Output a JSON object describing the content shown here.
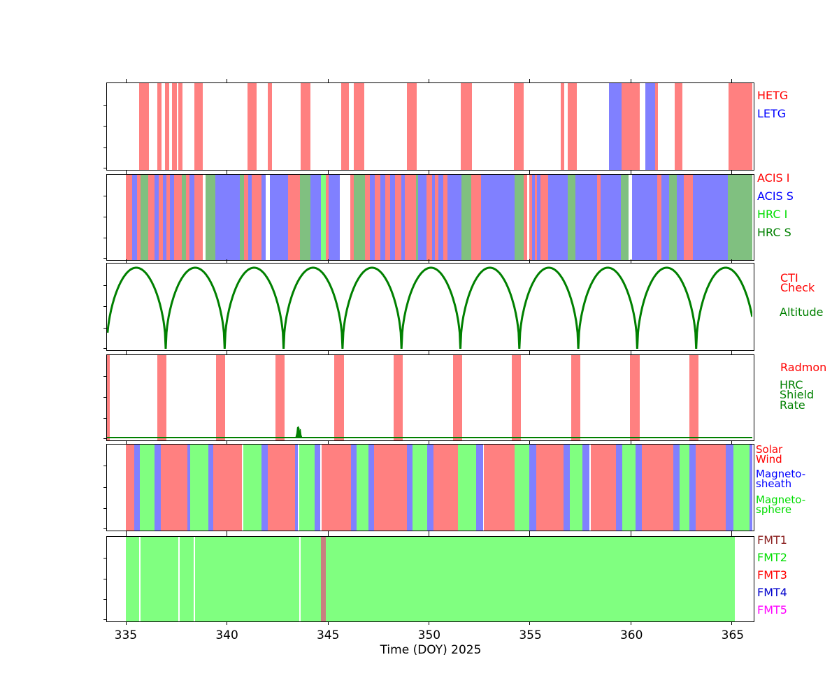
{
  "figure": {
    "background": "#ffffff",
    "description": "Chandra mission planning timeline, six stacked interval/line panels sharing one time axis"
  },
  "xaxis": {
    "label": "Time (DOY) 2025",
    "units": "Day of Year 2025",
    "major_ticks": [
      335,
      340,
      345,
      350,
      355,
      360,
      365
    ],
    "range": [
      334.07,
      366.04
    ],
    "grid": false
  },
  "legend_position": "right-of-panels",
  "legends": {
    "gratings": [
      {
        "label": "HETG",
        "color": "#ff0000"
      },
      {
        "label": "LETG",
        "color": "#0000ff"
      }
    ],
    "instruments": [
      {
        "label": "ACIS I",
        "color": "#ff0000"
      },
      {
        "label": "ACIS S",
        "color": "#0000ff"
      },
      {
        "label": "HRC I",
        "color": "#00dd00"
      },
      {
        "label": "HRC S",
        "color": "#008000"
      }
    ],
    "orbit": [
      {
        "label": "CTI\nCheck",
        "color": "#ff0000"
      },
      {
        "label": "Altitude",
        "color": "#008000"
      }
    ],
    "radiation": [
      {
        "label": "Radmon",
        "color": "#ff0000"
      },
      {
        "label": "HRC\nShield\nRate",
        "color": "#008000"
      }
    ],
    "solar_wind": [
      {
        "label": "Solar\nWind",
        "color": "#ff0000"
      },
      {
        "label": "Magneto-\nsheath",
        "color": "#0000ff"
      },
      {
        "label": "Magneto-\nsphere",
        "color": "#00dd00"
      }
    ],
    "telemetry": [
      {
        "label": "FMT1",
        "color": "#8b2020"
      },
      {
        "label": "FMT2",
        "color": "#00dd00"
      },
      {
        "label": "FMT3",
        "color": "#ff0000"
      },
      {
        "label": "FMT4",
        "color": "#0000cc"
      },
      {
        "label": "FMT5",
        "color": "#ff00ff"
      }
    ]
  },
  "chart_data": [
    {
      "id": "gratings",
      "type": "bar",
      "render": "intervals",
      "x_units": "DOY 2025",
      "series": [
        {
          "name": "HETG",
          "barColor": "#ff8080",
          "intervals": [
            [
              335.68,
              336.16
            ],
            [
              336.56,
              336.78
            ],
            [
              336.93,
              337.14
            ],
            [
              337.28,
              337.52
            ],
            [
              337.62,
              337.81
            ],
            [
              338.39,
              338.83
            ],
            [
              341.02,
              341.49
            ],
            [
              342.03,
              342.26
            ],
            [
              343.66,
              344.15
            ],
            [
              345.68,
              346.06
            ],
            [
              346.3,
              346.83
            ],
            [
              348.94,
              349.41
            ],
            [
              351.6,
              352.14
            ],
            [
              354.24,
              354.7
            ],
            [
              356.56,
              356.72
            ],
            [
              356.9,
              357.35
            ],
            [
              359.57,
              360.46
            ],
            [
              361.24,
              361.35
            ],
            [
              362.2,
              362.59
            ],
            [
              364.86,
              366.04
            ]
          ]
        },
        {
          "name": "LETG",
          "barColor": "#8080ff",
          "intervals": [
            [
              358.94,
              359.57
            ],
            [
              360.75,
              361.24
            ]
          ]
        }
      ]
    },
    {
      "id": "instruments",
      "type": "bar",
      "render": "segments",
      "x_units": "DOY 2025",
      "colorKeys": {
        "r": "#ff8080",
        "b": "#8080ff",
        "g": "#80ff80",
        "s": "#80c080"
      },
      "keyNames": {
        "r": "ACIS I",
        "b": "ACIS S",
        "g": "HRC I",
        "s": "HRC S"
      },
      "segments": [
        [
          335.02,
          335.31,
          "r"
        ],
        [
          335.31,
          335.56,
          "b"
        ],
        [
          335.56,
          335.74,
          "r"
        ],
        [
          335.74,
          336.11,
          "s"
        ],
        [
          336.11,
          336.43,
          "r"
        ],
        [
          336.43,
          336.65,
          "b"
        ],
        [
          336.65,
          336.83,
          "r"
        ],
        [
          336.83,
          337.01,
          "b"
        ],
        [
          337.01,
          337.2,
          "r"
        ],
        [
          337.2,
          337.41,
          "b"
        ],
        [
          337.41,
          337.78,
          "r"
        ],
        [
          337.78,
          337.97,
          "s"
        ],
        [
          337.97,
          338.16,
          "r"
        ],
        [
          338.16,
          338.39,
          "b"
        ],
        [
          338.39,
          338.81,
          "r"
        ],
        [
          338.96,
          339.44,
          "s"
        ],
        [
          339.44,
          340.65,
          "b"
        ],
        [
          340.65,
          340.85,
          "s"
        ],
        [
          340.85,
          341.08,
          "r"
        ],
        [
          341.08,
          341.25,
          "b"
        ],
        [
          341.25,
          341.72,
          "r"
        ],
        [
          341.72,
          341.95,
          "b"
        ],
        [
          342.15,
          343.05,
          "b"
        ],
        [
          343.05,
          343.62,
          "r"
        ],
        [
          343.62,
          344.16,
          "s"
        ],
        [
          344.16,
          344.66,
          "b"
        ],
        [
          344.66,
          344.91,
          "g"
        ],
        [
          344.91,
          345.05,
          "r"
        ],
        [
          345.05,
          345.6,
          "b"
        ],
        [
          346.12,
          346.31,
          "r"
        ],
        [
          346.31,
          346.86,
          "s"
        ],
        [
          346.86,
          347.09,
          "r"
        ],
        [
          347.09,
          347.34,
          "b"
        ],
        [
          347.34,
          347.61,
          "r"
        ],
        [
          347.61,
          347.84,
          "b"
        ],
        [
          347.84,
          348.1,
          "r"
        ],
        [
          348.1,
          348.35,
          "b"
        ],
        [
          348.35,
          348.64,
          "r"
        ],
        [
          348.64,
          348.81,
          "b"
        ],
        [
          348.81,
          349.38,
          "r"
        ],
        [
          349.38,
          349.5,
          "s"
        ],
        [
          349.5,
          349.9,
          "b"
        ],
        [
          349.9,
          350.19,
          "r"
        ],
        [
          350.19,
          350.33,
          "b"
        ],
        [
          350.33,
          350.48,
          "r"
        ],
        [
          350.48,
          350.74,
          "b"
        ],
        [
          350.74,
          350.94,
          "r"
        ],
        [
          350.94,
          351.62,
          "b"
        ],
        [
          351.62,
          352.11,
          "s"
        ],
        [
          352.11,
          352.6,
          "r"
        ],
        [
          352.6,
          354.26,
          "b"
        ],
        [
          354.26,
          354.72,
          "s"
        ],
        [
          354.72,
          354.87,
          "r"
        ],
        [
          354.98,
          355.12,
          "r"
        ],
        [
          355.12,
          355.26,
          "b"
        ],
        [
          355.26,
          355.38,
          "r"
        ],
        [
          355.38,
          355.54,
          "b"
        ],
        [
          355.54,
          355.92,
          "r"
        ],
        [
          355.92,
          356.9,
          "b"
        ],
        [
          356.9,
          357.27,
          "s"
        ],
        [
          357.27,
          358.35,
          "b"
        ],
        [
          358.35,
          358.52,
          "r"
        ],
        [
          358.52,
          359.54,
          "b"
        ],
        [
          359.54,
          359.92,
          "s"
        ],
        [
          360.09,
          361.32,
          "b"
        ],
        [
          361.32,
          361.55,
          "r"
        ],
        [
          361.55,
          361.92,
          "b"
        ],
        [
          361.92,
          362.29,
          "s"
        ],
        [
          362.29,
          362.65,
          "b"
        ],
        [
          362.65,
          363.1,
          "r"
        ],
        [
          363.1,
          364.82,
          "b"
        ],
        [
          364.82,
          366.04,
          "s"
        ]
      ]
    },
    {
      "id": "orbit",
      "type": "line",
      "render": "curve",
      "name": "Altitude",
      "color": "#008000",
      "line_width": 3,
      "perigee_start_doy": 334.06,
      "period_days": 2.92,
      "shape_exponent": 0.5,
      "note": "repeating altitude arches, minima (perigee) every 2.92 days starting DOY 334.06"
    },
    {
      "id": "radiation",
      "type": "bar",
      "render": "intervals",
      "series": [
        {
          "name": "Radmon",
          "barColor": "#ff8080",
          "intervals": [
            [
              334.07,
              334.2
            ],
            [
              336.55,
              337.0
            ],
            [
              339.48,
              339.94
            ],
            [
              342.41,
              342.86
            ],
            [
              345.34,
              345.8
            ],
            [
              348.27,
              348.73
            ],
            [
              351.2,
              351.66
            ],
            [
              354.13,
              354.59
            ],
            [
              357.06,
              357.52
            ],
            [
              359.99,
              360.45
            ],
            [
              362.92,
              363.38
            ]
          ]
        }
      ],
      "baseline": {
        "name": "HRC Shield Rate",
        "color": "#008000",
        "spike": [
          [
            343.42,
            0.0
          ],
          [
            343.47,
            0.05
          ],
          [
            343.5,
            0.12
          ],
          [
            343.55,
            0.13
          ],
          [
            343.59,
            0.11
          ],
          [
            343.62,
            0.05
          ],
          [
            343.65,
            0.1
          ],
          [
            343.69,
            0.03
          ],
          [
            343.73,
            0.0
          ]
        ]
      }
    },
    {
      "id": "solar-wind-regions",
      "type": "bar",
      "render": "segments",
      "colorKeys": {
        "r": "#ff8080",
        "b": "#8080ff",
        "g": "#80ff80"
      },
      "keyNames": {
        "r": "Solar Wind",
        "b": "Magnetosheath",
        "g": "Magnetosphere"
      },
      "segments": [
        [
          335.0,
          335.42,
          "r"
        ],
        [
          335.42,
          335.71,
          "b"
        ],
        [
          335.71,
          336.44,
          "g"
        ],
        [
          336.44,
          336.75,
          "b"
        ],
        [
          336.75,
          338.06,
          "r"
        ],
        [
          338.06,
          338.18,
          "b"
        ],
        [
          338.18,
          339.1,
          "g"
        ],
        [
          339.1,
          339.35,
          "b"
        ],
        [
          339.35,
          340.76,
          "r"
        ],
        [
          340.82,
          341.72,
          "g"
        ],
        [
          341.72,
          342.03,
          "b"
        ],
        [
          342.03,
          343.4,
          "r"
        ],
        [
          343.4,
          343.52,
          "b"
        ],
        [
          343.58,
          344.36,
          "g"
        ],
        [
          344.36,
          344.63,
          "b"
        ],
        [
          344.72,
          346.16,
          "r"
        ],
        [
          346.16,
          346.45,
          "b"
        ],
        [
          346.45,
          347.02,
          "g"
        ],
        [
          347.02,
          347.31,
          "b"
        ],
        [
          347.31,
          348.92,
          "r"
        ],
        [
          348.92,
          349.2,
          "b"
        ],
        [
          349.2,
          349.95,
          "g"
        ],
        [
          349.95,
          350.25,
          "b"
        ],
        [
          350.25,
          351.45,
          "r"
        ],
        [
          351.45,
          352.35,
          "g"
        ],
        [
          352.35,
          352.69,
          "b"
        ],
        [
          352.74,
          354.26,
          "r"
        ],
        [
          354.26,
          354.98,
          "g"
        ],
        [
          354.98,
          355.32,
          "b"
        ],
        [
          355.32,
          356.7,
          "r"
        ],
        [
          356.7,
          357.01,
          "b"
        ],
        [
          357.01,
          357.64,
          "g"
        ],
        [
          357.64,
          357.98,
          "b"
        ],
        [
          358.04,
          359.3,
          "r"
        ],
        [
          359.3,
          359.61,
          "b"
        ],
        [
          359.61,
          360.25,
          "g"
        ],
        [
          360.25,
          360.56,
          "b"
        ],
        [
          360.56,
          362.13,
          "r"
        ],
        [
          362.13,
          362.45,
          "b"
        ],
        [
          362.45,
          362.91,
          "g"
        ],
        [
          362.91,
          363.25,
          "b"
        ],
        [
          363.25,
          364.74,
          "r"
        ],
        [
          364.74,
          365.09,
          "b"
        ],
        [
          365.09,
          365.89,
          "g"
        ],
        [
          365.89,
          366.04,
          "b"
        ]
      ]
    },
    {
      "id": "telemetry",
      "type": "bar",
      "render": "segments",
      "colorKeys": {
        "g": "#80ff80",
        "r": "#c88080"
      },
      "keyNames": {
        "g": "FMT2",
        "r": "FMT3"
      },
      "segments": [
        [
          335.0,
          335.66,
          "g"
        ],
        [
          335.72,
          337.62,
          "g"
        ],
        [
          337.68,
          338.36,
          "g"
        ],
        [
          338.42,
          343.59,
          "g"
        ],
        [
          343.65,
          344.66,
          "g"
        ],
        [
          344.66,
          344.91,
          "r"
        ],
        [
          344.91,
          365.18,
          "g"
        ]
      ]
    }
  ]
}
